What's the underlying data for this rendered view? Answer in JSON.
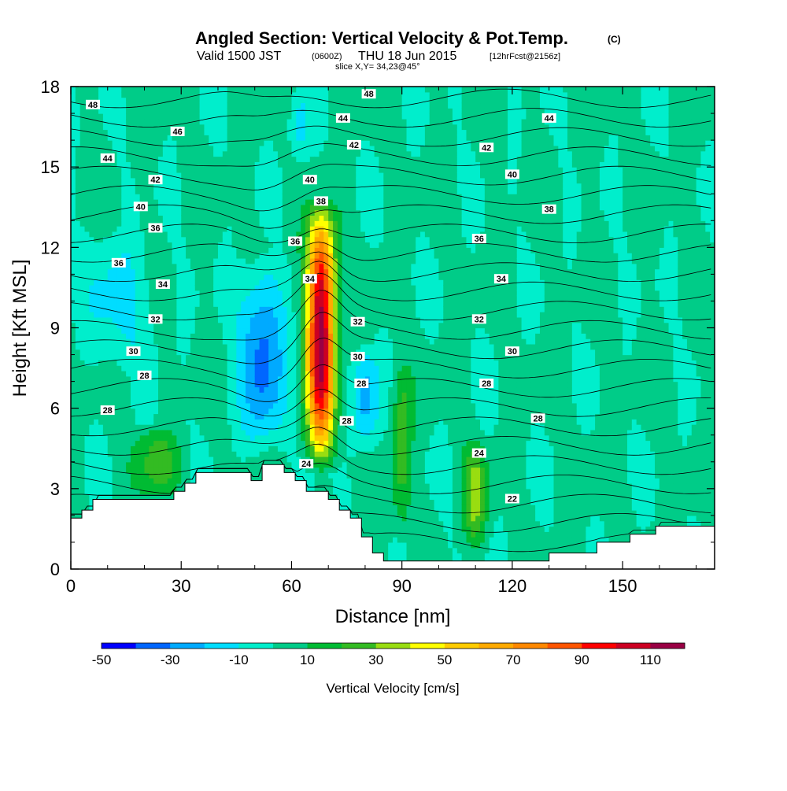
{
  "title": {
    "main": "Angled Section: Vertical Velocity & Pot.Temp.",
    "copyright": "(C)",
    "valid_prefix": "Valid 1500 JST",
    "valid_utc": "(0600Z)",
    "valid_date": "THU 18 Jun 2015",
    "forecast": "[12hrFcst@2156z]",
    "slice": "slice X,Y= 34,23@45°"
  },
  "colors": {
    "colorbar": [
      "#0000ff",
      "#0066ff",
      "#00aaff",
      "#00ddff",
      "#00eecc",
      "#00cc88",
      "#00bb33",
      "#33bb22",
      "#99dd11",
      "#ffff00",
      "#ffcc00",
      "#ffaa00",
      "#ff8800",
      "#ff5500",
      "#ff0000",
      "#cc0022",
      "#990044",
      "#660088"
    ],
    "background_field": "#00cc88"
  },
  "chart_data": {
    "type": "heatmap",
    "title": "Angled Section: Vertical Velocity & Pot.Temp.",
    "xlabel": "Distance [nm]",
    "ylabel": "Height [Kft MSL]",
    "xlim": [
      0,
      175
    ],
    "ylim": [
      0,
      18
    ],
    "xticks": [
      0,
      30,
      60,
      90,
      120,
      150
    ],
    "xtick_labels": [
      "0",
      "30",
      "60",
      "90",
      "120",
      "150"
    ],
    "yticks": [
      0,
      3,
      6,
      9,
      12,
      15,
      18
    ],
    "ytick_labels": [
      "0",
      "3",
      "6",
      "9",
      "12",
      "15",
      "18"
    ],
    "colorbar": {
      "label": "Vertical Velocity [cm/s]",
      "min": -50,
      "max": 120,
      "step": 10,
      "tick_values": [
        -50,
        -30,
        -10,
        10,
        30,
        50,
        70,
        90,
        110
      ],
      "tick_labels": [
        "-50",
        "-30",
        "-10",
        "10",
        "30",
        "50",
        "70",
        "90",
        "110"
      ]
    },
    "terrain": [
      [
        0,
        1.9
      ],
      [
        3,
        1.9
      ],
      [
        3,
        2.2
      ],
      [
        6,
        2.2
      ],
      [
        6,
        2.6
      ],
      [
        28,
        2.6
      ],
      [
        28,
        2.9
      ],
      [
        31,
        2.9
      ],
      [
        31,
        3.2
      ],
      [
        34,
        3.2
      ],
      [
        34,
        3.6
      ],
      [
        49,
        3.6
      ],
      [
        49,
        3.3
      ],
      [
        52,
        3.3
      ],
      [
        52,
        3.9
      ],
      [
        58,
        3.9
      ],
      [
        58,
        3.6
      ],
      [
        61,
        3.6
      ],
      [
        61,
        3.3
      ],
      [
        64,
        3.3
      ],
      [
        64,
        2.9
      ],
      [
        70,
        2.9
      ],
      [
        70,
        2.6
      ],
      [
        73,
        2.6
      ],
      [
        73,
        2.2
      ],
      [
        76,
        2.2
      ],
      [
        76,
        1.9
      ],
      [
        79,
        1.9
      ],
      [
        79,
        1.2
      ],
      [
        82,
        1.2
      ],
      [
        82,
        0.6
      ],
      [
        85,
        0.6
      ],
      [
        85,
        0.3
      ],
      [
        130,
        0.3
      ],
      [
        130,
        0.6
      ],
      [
        143,
        0.6
      ],
      [
        143,
        1.0
      ],
      [
        152,
        1.0
      ],
      [
        152,
        1.3
      ],
      [
        159,
        1.3
      ],
      [
        159,
        1.6
      ],
      [
        175,
        1.6
      ]
    ],
    "velocity_features": [
      {
        "type": "updraft_core",
        "x_center": 68,
        "x_halfwidth": 4.8,
        "y_base": 3.5,
        "y_top": 14,
        "peak_cm_s": 115,
        "peak_height": 9
      },
      {
        "type": "downdraft",
        "x_center": 52,
        "x_halfwidth": 7,
        "y_base": 4,
        "y_top": 12,
        "peak_cm_s": -35
      },
      {
        "type": "downdraft",
        "x_center": 13,
        "x_halfwidth": 10,
        "y_base": 7,
        "y_top": 13,
        "peak_cm_s": -15
      },
      {
        "type": "downdraft",
        "x_center": 80,
        "x_halfwidth": 4,
        "y_base": 4,
        "y_top": 8.5,
        "peak_cm_s": -25
      },
      {
        "type": "downdraft",
        "x_center": 62,
        "x_halfwidth": 3,
        "y_base": 15,
        "y_top": 18,
        "peak_cm_s": -15
      },
      {
        "type": "updraft",
        "x_center": 90,
        "x_halfwidth": 3,
        "y_base": 1,
        "y_top": 8,
        "peak_cm_s": 25
      },
      {
        "type": "updraft",
        "x_center": 110,
        "x_halfwidth": 3.5,
        "y_base": 0.5,
        "y_top": 5,
        "peak_cm_s": 30
      },
      {
        "type": "updraft",
        "x_center": 23,
        "x_halfwidth": 7,
        "y_base": 2.5,
        "y_top": 5.5,
        "peak_cm_s": 22
      }
    ],
    "pot_temp_contour_labels": [
      {
        "text": "48",
        "x": 6,
        "y": 17.3
      },
      {
        "text": "48",
        "x": 81,
        "y": 17.7
      },
      {
        "text": "46",
        "x": 29,
        "y": 16.3
      },
      {
        "text": "44",
        "x": 74,
        "y": 16.8
      },
      {
        "text": "44",
        "x": 130,
        "y": 16.8
      },
      {
        "text": "44",
        "x": 10,
        "y": 15.3
      },
      {
        "text": "42",
        "x": 77,
        "y": 15.8
      },
      {
        "text": "42",
        "x": 113,
        "y": 15.7
      },
      {
        "text": "42",
        "x": 23,
        "y": 14.5
      },
      {
        "text": "40",
        "x": 65,
        "y": 14.5
      },
      {
        "text": "40",
        "x": 120,
        "y": 14.7
      },
      {
        "text": "40",
        "x": 19,
        "y": 13.5
      },
      {
        "text": "38",
        "x": 68,
        "y": 13.7
      },
      {
        "text": "38",
        "x": 130,
        "y": 13.4
      },
      {
        "text": "36",
        "x": 23,
        "y": 12.7
      },
      {
        "text": "36",
        "x": 61,
        "y": 12.2
      },
      {
        "text": "36",
        "x": 111,
        "y": 12.3
      },
      {
        "text": "36",
        "x": 13,
        "y": 11.4
      },
      {
        "text": "34",
        "x": 65,
        "y": 10.8
      },
      {
        "text": "34",
        "x": 25,
        "y": 10.6
      },
      {
        "text": "34",
        "x": 117,
        "y": 10.8
      },
      {
        "text": "32",
        "x": 23,
        "y": 9.3
      },
      {
        "text": "32",
        "x": 78,
        "y": 9.2
      },
      {
        "text": "32",
        "x": 111,
        "y": 9.3
      },
      {
        "text": "30",
        "x": 17,
        "y": 8.1
      },
      {
        "text": "30",
        "x": 78,
        "y": 7.9
      },
      {
        "text": "30",
        "x": 120,
        "y": 8.1
      },
      {
        "text": "28",
        "x": 20,
        "y": 7.2
      },
      {
        "text": "28",
        "x": 79,
        "y": 6.9
      },
      {
        "text": "28",
        "x": 113,
        "y": 6.9
      },
      {
        "text": "28",
        "x": 10,
        "y": 5.9
      },
      {
        "text": "28",
        "x": 75,
        "y": 5.5
      },
      {
        "text": "28",
        "x": 127,
        "y": 5.6
      },
      {
        "text": "24",
        "x": 64,
        "y": 3.9
      },
      {
        "text": "24",
        "x": 111,
        "y": 4.3
      },
      {
        "text": "22",
        "x": 120,
        "y": 2.6
      }
    ]
  }
}
